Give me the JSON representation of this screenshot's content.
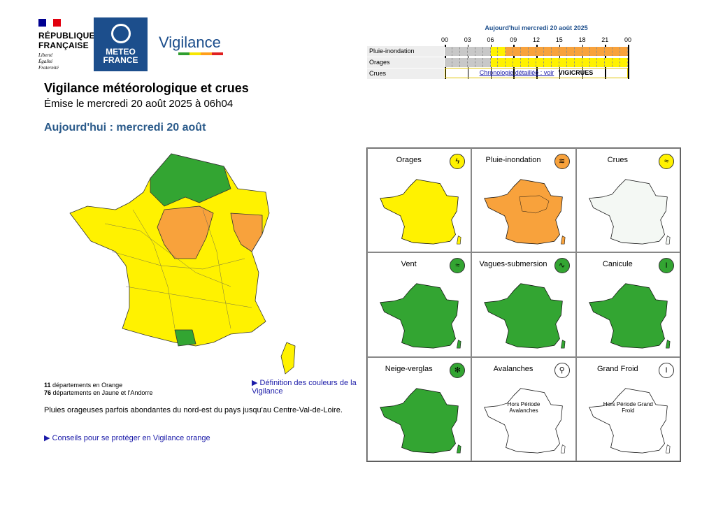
{
  "header": {
    "republique_line1": "RÉPUBLIQUE",
    "republique_line2": "FRANÇAISE",
    "motto": [
      "Liberté",
      "Égalité",
      "Fraternité"
    ],
    "meteo_logo_line1": "METEO",
    "meteo_logo_line2": "FRANCE",
    "vigilance_word": "Vigilance",
    "vigilance_bar_colors": [
      "#2f9e2f",
      "#f7e600",
      "#ff9f1a",
      "#e02020"
    ],
    "title": "Vigilance météorologique et crues",
    "issued": "Émise le mercredi 20 août 2025 à 06h04",
    "today": "Aujourd'hui : mercredi 20 août"
  },
  "timeline": {
    "title": "Aujourd'hui mercredi 20 août 2025",
    "ticks": [
      "00",
      "03",
      "06",
      "09",
      "12",
      "15",
      "18",
      "21",
      "00"
    ],
    "rows": [
      {
        "label": "Pluie-inondation",
        "levels": [
          "grey",
          "grey",
          "grey",
          "grey",
          "grey",
          "grey",
          "yellow",
          "yellow",
          "orange",
          "orange",
          "orange",
          "orange",
          "orange",
          "orange",
          "orange",
          "orange",
          "orange",
          "orange",
          "orange",
          "orange",
          "orange",
          "orange",
          "orange",
          "orange"
        ]
      },
      {
        "label": "Orages",
        "levels": [
          "grey",
          "grey",
          "grey",
          "grey",
          "grey",
          "grey",
          "yellow",
          "yellow",
          "yellow",
          "yellow",
          "yellow",
          "yellow",
          "yellow",
          "yellow",
          "yellow",
          "yellow",
          "yellow",
          "yellow",
          "yellow",
          "yellow",
          "yellow",
          "yellow",
          "yellow",
          "yellow"
        ]
      }
    ],
    "crues_label": "Crues",
    "crues_link": "Chronologie détaillée : voir",
    "crues_logo": "VIGICRUES"
  },
  "colors": {
    "green": "#33a532",
    "yellow": "#fff200",
    "orange": "#f8a23c",
    "grey": "#c8c8c8",
    "white": "#ffffff"
  },
  "summary": {
    "orange_count": "11",
    "orange_text": "départements en Orange",
    "yellow_count": "76",
    "yellow_text": "départements en Jaune et l'Andorre",
    "definition_link": "▶ Définition des couleurs de la Vigilance",
    "comment": "Pluies orageuses parfois abondantes du nord-est du pays jusqu'au Centre-Val-de-Loire.",
    "advice_link": "▶ Conseils pour se protéger en Vigilance orange"
  },
  "phenomena": [
    {
      "name": "Orages",
      "level": "yellow",
      "icon": "lightning-icon",
      "glyph": "ϟ"
    },
    {
      "name": "Pluie-inondation",
      "level": "orange",
      "icon": "rain-flood-icon",
      "glyph": "≋"
    },
    {
      "name": "Crues",
      "level": "yellow",
      "icon": "river-icon",
      "glyph": "≈"
    },
    {
      "name": "Vent",
      "level": "green",
      "icon": "wind-icon",
      "glyph": "≈"
    },
    {
      "name": "Vagues-submersion",
      "level": "green",
      "icon": "wave-icon",
      "glyph": "∿"
    },
    {
      "name": "Canicule",
      "level": "green",
      "icon": "thermometer-hot-icon",
      "glyph": "I"
    },
    {
      "name": "Neige-verglas",
      "level": "green",
      "icon": "snowflake-icon",
      "glyph": "✻"
    },
    {
      "name": "Avalanches",
      "level": "white",
      "icon": "avalanche-icon",
      "glyph": "⚲",
      "overlay": "Hors Période Avalanches"
    },
    {
      "name": "Grand Froid",
      "level": "white",
      "icon": "thermometer-cold-icon",
      "glyph": "I",
      "overlay": "Hors Période Grand Froid"
    }
  ]
}
